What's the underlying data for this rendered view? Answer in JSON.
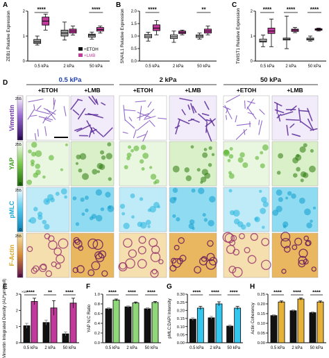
{
  "panel_letters": [
    "A",
    "B",
    "C",
    "D",
    "E",
    "F",
    "G",
    "H"
  ],
  "legend": {
    "etoh": "+ETOH",
    "lmb": "+LMB"
  },
  "colors": {
    "etoh": "#111111",
    "lmb": "#c0399b",
    "white_box": "#ffffff",
    "vimentin": "#6a2fa6",
    "yap": "#3f9e1c",
    "pmlc": "#19a9d6",
    "factin": "#d7a21c",
    "bar_etoh": "#111111",
    "bar_yap_lmb": "#8fd87a",
    "bar_pmlc_lmb": "#33c6ef",
    "bar_act_lmb": "#e7b23a"
  },
  "panel_d": {
    "conditions": [
      "0.5 kPa",
      "2 kPa",
      "50 kPa"
    ],
    "treatments": [
      "+ETOH",
      "+LMB"
    ],
    "rows": [
      "Vimentin",
      "YAP",
      "pMLC",
      "F-Actin"
    ],
    "scale_top": "255",
    "scale_bottom": "0",
    "condition_colors": [
      "#1f3fae",
      "#111111",
      "#111111"
    ]
  },
  "chart_data": [
    {
      "type": "box",
      "panel": "A",
      "ylabel": "ZEB1 Relative Expression",
      "categories": [
        "0.5 kPa",
        "2 kPa",
        "50 kPa"
      ],
      "ylim": [
        0,
        2.5
      ],
      "yticks": [
        "0",
        "1",
        "2"
      ],
      "series": [
        {
          "name": "+ETOH",
          "boxes": [
            {
              "min": 0.8,
              "q1": 0.88,
              "median": 0.96,
              "q3": 1.08,
              "max": 1.25
            },
            {
              "min": 1.05,
              "q1": 1.25,
              "median": 1.4,
              "q3": 1.55,
              "max": 1.95
            },
            {
              "min": 1.1,
              "q1": 1.2,
              "median": 1.3,
              "q3": 1.35,
              "max": 1.45
            }
          ]
        },
        {
          "name": "+LMB",
          "boxes": [
            {
              "min": 1.55,
              "q1": 1.8,
              "median": 2.0,
              "q3": 2.2,
              "max": 2.35
            },
            {
              "min": 1.3,
              "q1": 1.4,
              "median": 1.5,
              "q3": 1.6,
              "max": 1.75
            },
            {
              "min": 1.4,
              "q1": 1.5,
              "median": 1.58,
              "q3": 1.68,
              "max": 1.75
            }
          ]
        }
      ],
      "significance": [
        "****",
        "",
        "****"
      ]
    },
    {
      "type": "box",
      "panel": "B",
      "ylabel": "SNAIL1 Relative Expression",
      "categories": [
        "0.5 kPa",
        "2 kPa",
        "50 kPa"
      ],
      "ylim": [
        0,
        2.0
      ],
      "yticks": [
        "0.0",
        "0.5",
        "1.0",
        "1.5",
        "2.0"
      ],
      "series": [
        {
          "name": "+ETOH",
          "boxes": [
            {
              "min": 0.8,
              "q1": 0.93,
              "median": 1.0,
              "q3": 1.07,
              "max": 1.15
            },
            {
              "min": 0.75,
              "q1": 0.9,
              "median": 0.97,
              "q3": 1.05,
              "max": 1.2
            },
            {
              "min": 0.88,
              "q1": 0.94,
              "median": 1.0,
              "q3": 1.05,
              "max": 1.12
            }
          ]
        },
        {
          "name": "+LMB",
          "boxes": [
            {
              "min": 1.05,
              "q1": 1.22,
              "median": 1.32,
              "q3": 1.45,
              "max": 1.62
            },
            {
              "min": 1.05,
              "q1": 1.1,
              "median": 1.15,
              "q3": 1.2,
              "max": 1.24
            },
            {
              "min": 1.05,
              "q1": 1.12,
              "median": 1.2,
              "q3": 1.28,
              "max": 1.4
            }
          ]
        }
      ],
      "significance": [
        "****",
        "",
        "**"
      ]
    },
    {
      "type": "box",
      "panel": "C",
      "ylabel": "TWIST1 Relative Expression",
      "categories": [
        "0.5 kPa",
        "2 kPa",
        "50 kPa"
      ],
      "ylim": [
        0,
        2.5
      ],
      "yticks": [
        "0",
        "1",
        "2"
      ],
      "series": [
        {
          "name": "+ETOH",
          "boxes": [
            {
              "min": 0.72,
              "q1": 0.95,
              "median": 1.0,
              "q3": 1.1,
              "max": 1.3
            },
            {
              "min": 0.62,
              "q1": 1.05,
              "median": 1.1,
              "q3": 1.15,
              "max": 2.25
            },
            {
              "min": 1.0,
              "q1": 1.05,
              "median": 1.1,
              "q3": 1.15,
              "max": 1.25
            }
          ]
        },
        {
          "name": "+LMB",
          "boxes": [
            {
              "min": 0.72,
              "q1": 1.38,
              "median": 1.5,
              "q3": 1.65,
              "max": 2.1
            },
            {
              "min": 1.42,
              "q1": 1.48,
              "median": 1.55,
              "q3": 1.6,
              "max": 1.68
            },
            {
              "min": 1.5,
              "q1": 1.54,
              "median": 1.58,
              "q3": 1.62,
              "max": 1.65
            }
          ]
        }
      ],
      "significance": [
        "****",
        "****",
        "****"
      ]
    },
    {
      "type": "bar",
      "panel": "E",
      "ylabel": "Vimentin Integrated Density (AU*μm²/cell)",
      "scale_note": "×10⁴",
      "categories": [
        "0.5 kPa",
        "2 kPa",
        "50 kPa"
      ],
      "ylim": [
        0,
        3
      ],
      "yticks": [
        "0",
        "1",
        "2",
        "3"
      ],
      "series": [
        {
          "name": "+ETOH",
          "values": [
            1.05,
            1.25,
            0.55
          ],
          "errors": [
            0.15,
            0.15,
            0.12
          ]
        },
        {
          "name": "+LMB",
          "values": [
            2.55,
            2.15,
            2.45
          ],
          "errors": [
            0.2,
            0.45,
            0.3
          ]
        }
      ],
      "significance": [
        "****",
        "**",
        "****"
      ]
    },
    {
      "type": "bar",
      "panel": "F",
      "ylabel": "YAP N:C Ratio",
      "categories": [
        "0.5 kPa",
        "2 kPa",
        "50 kPa"
      ],
      "ylim": [
        0,
        1.0
      ],
      "yticks": [
        "0.0",
        "0.2",
        "0.4",
        "0.6",
        "0.8",
        "1.0"
      ],
      "series": [
        {
          "name": "+ETOH",
          "values": [
            0.7,
            0.74,
            0.7
          ],
          "errors": [
            0.02,
            0.02,
            0.02
          ]
        },
        {
          "name": "+LMB",
          "values": [
            0.88,
            0.82,
            0.83
          ],
          "errors": [
            0.02,
            0.02,
            0.02
          ]
        }
      ],
      "significance": [
        "****",
        "****",
        "****"
      ]
    },
    {
      "type": "bar",
      "panel": "G",
      "ylabel": "pMLC:DAPI Intensity",
      "categories": [
        "0.5 kPa",
        "2 kPa",
        "50 kPa"
      ],
      "ylim": [
        0,
        0.35
      ],
      "yticks": [
        "0.00",
        "0.05",
        "0.10",
        "0.15",
        "0.20",
        "0.25",
        "0.30"
      ],
      "series": [
        {
          "name": "+ETOH",
          "values": [
            0.17,
            0.18,
            0.12
          ],
          "errors": [
            0.01,
            0.01,
            0.008
          ]
        },
        {
          "name": "+LMB",
          "values": [
            0.25,
            0.28,
            0.25
          ],
          "errors": [
            0.012,
            0.015,
            0.012
          ]
        }
      ],
      "significance": [
        "****",
        "****",
        "****"
      ]
    },
    {
      "type": "bar",
      "panel": "H",
      "ylabel": "Actin Coherency",
      "categories": [
        "0.5 kPa",
        "2 kPa",
        "50 kPa"
      ],
      "ylim": [
        0,
        0.25
      ],
      "yticks": [
        "0.00",
        "0.05",
        "0.10",
        "0.15",
        "0.20",
        "0.25"
      ],
      "series": [
        {
          "name": "+ETOH",
          "values": [
            0.14,
            0.165,
            0.155
          ],
          "errors": [
            0.004,
            0.004,
            0.004
          ]
        },
        {
          "name": "+LMB",
          "values": [
            0.21,
            0.225,
            0.21
          ],
          "errors": [
            0.005,
            0.005,
            0.005
          ]
        }
      ],
      "significance": [
        "****",
        "****",
        "****"
      ]
    }
  ]
}
